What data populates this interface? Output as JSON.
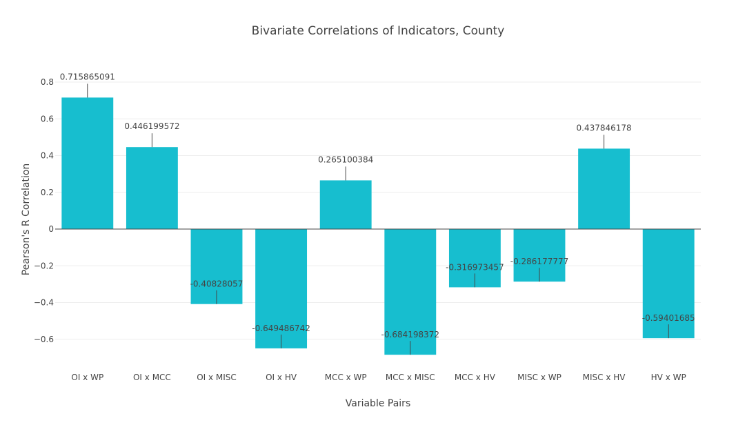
{
  "chart_data": {
    "type": "bar",
    "title": "Bivariate Correlations of Indicators, County",
    "xlabel": "Variable Pairs",
    "ylabel": "Pearson's R Correlation",
    "categories": [
      "OI x WP",
      "OI x MCC",
      "OI x MISC",
      "OI x HV",
      "MCC x WP",
      "MCC x MISC",
      "MCC x HV",
      "MISC x WP",
      "MISC x HV",
      "HV x WP"
    ],
    "values": [
      0.715865091,
      0.446199572,
      -0.40828057,
      -0.649486742,
      0.265100384,
      -0.684198372,
      -0.316973457,
      -0.286177777,
      0.437846178,
      -0.59401685
    ],
    "value_labels": [
      "0.715865091",
      "0.446199572",
      "-0.40828057",
      "-0.649486742",
      "0.265100384",
      "-0.684198372",
      "-0.316973457",
      "-0.286177777",
      "0.437846178",
      "-0.59401685"
    ],
    "yticks": [
      0.8,
      0.6,
      0.4,
      0.2,
      0,
      -0.2,
      -0.4,
      -0.6
    ],
    "ytick_labels": [
      "0.8",
      "0.6",
      "0.4",
      "0.2",
      "0",
      "−0.2",
      "−0.4",
      "−0.6"
    ],
    "ylim": [
      -0.75,
      0.8
    ],
    "grid": true,
    "bar_color": "#17becf"
  }
}
